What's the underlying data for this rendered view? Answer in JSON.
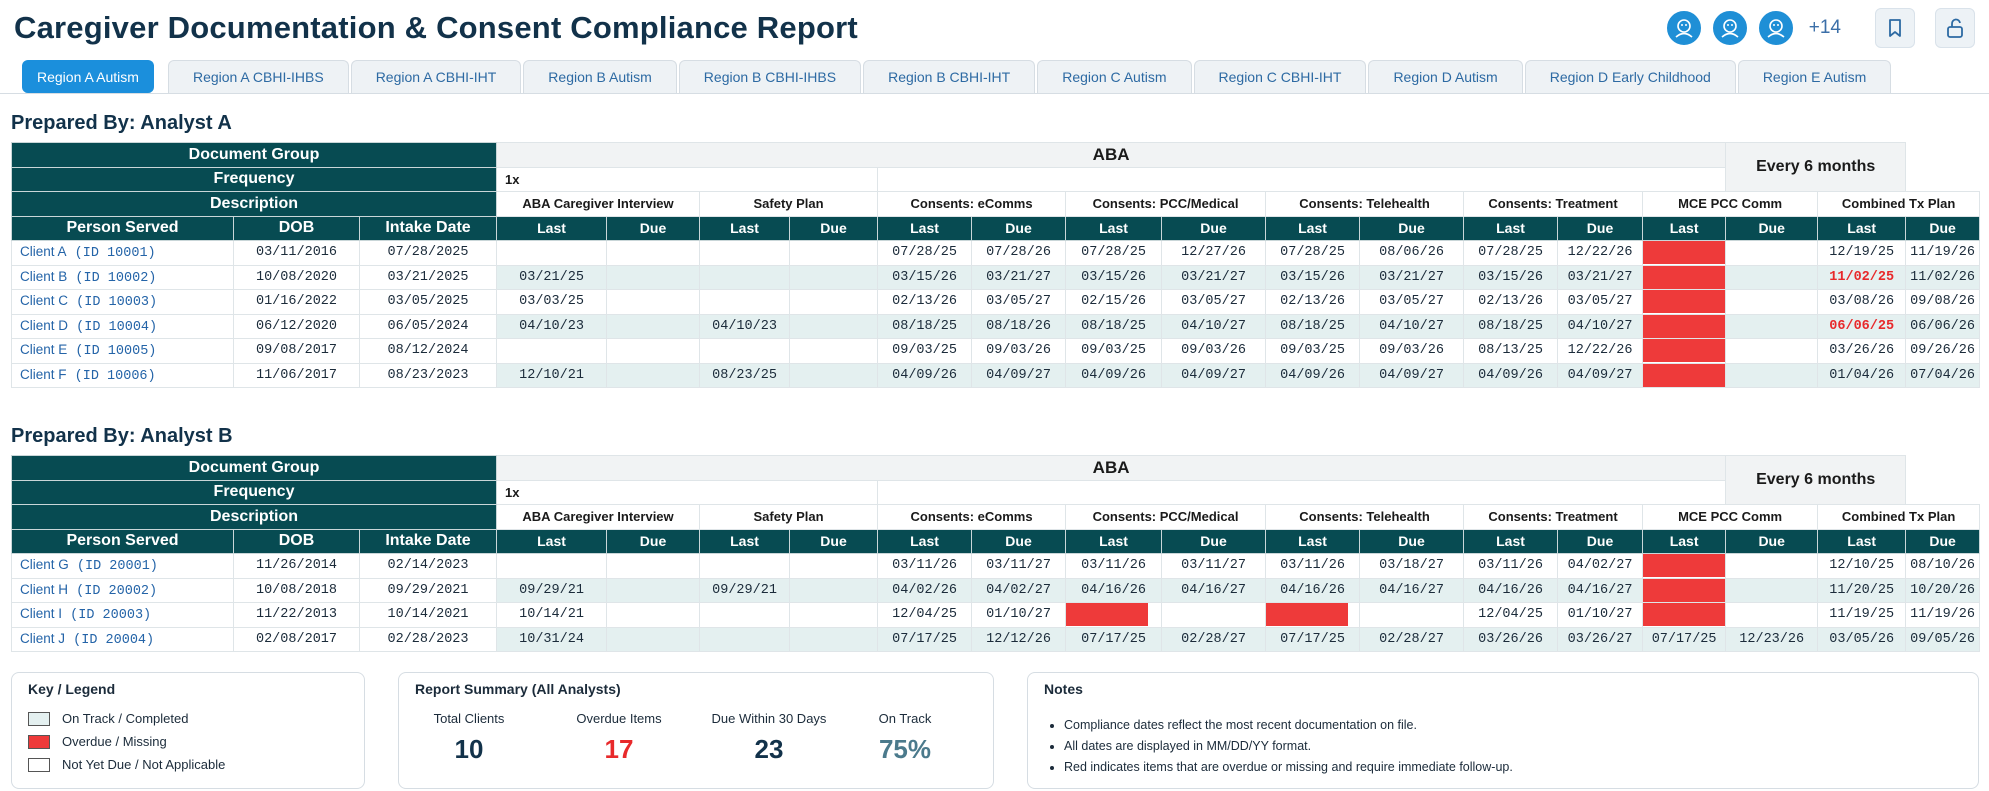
{
  "title": "Caregiver Documentation & Consent Compliance Report",
  "header": {
    "more_count": "+14",
    "avatars": [
      "user-avatar-1",
      "user-avatar-2",
      "user-avatar-3"
    ],
    "bookmark_icon": "bookmark-icon",
    "unlock_icon": "unlock-icon"
  },
  "tabs": [
    "Region A Autism",
    "Region A CBHI-IHBS",
    "Region A CBHI-IHT",
    "Region B Autism",
    "Region B CBHI-IHBS",
    "Region B CBHI-IHT",
    "Region C Autism",
    "Region C CBHI-IHT",
    "Region D Autism",
    "Region D Early Childhood",
    "Region E Autism"
  ],
  "active_tab": "Region A Autism",
  "table_headers": {
    "document_group": "Document Group",
    "frequency": "Frequency",
    "description": "Description",
    "person_served": "Person Served",
    "dob": "DOB",
    "intake_date": "Intake Date",
    "group_name": "ABA",
    "frequency_value": "1x",
    "every_6_months": "Every 6 months",
    "last": "Last",
    "due": "Due",
    "descriptions": [
      "ABA Caregiver Interview",
      "Safety Plan",
      "Consents: eComms",
      "Consents: PCC/Medical",
      "Consents: Telehealth",
      "Consents: Treatment",
      "MCE PCC Comm",
      "Combined Tx Plan"
    ]
  },
  "sections": [
    {
      "prepared_by": "Prepared By: Analyst A",
      "rows": [
        {
          "client": "Client A",
          "id": "(ID 10001)",
          "dob": "03/11/2016",
          "intake": "07/28/2025",
          "cells": [
            "",
            "",
            "",
            "",
            "07/28/25",
            "07/28/26",
            "07/28/25",
            "12/27/26",
            "07/28/25",
            "08/06/26",
            "07/28/25",
            "12/22/26",
            "RED",
            "",
            "12/19/25",
            "11/19/26"
          ]
        },
        {
          "client": "Client B",
          "id": "(ID 10002)",
          "dob": "10/08/2020",
          "intake": "03/21/2025",
          "cells": [
            "03/21/25",
            "",
            "",
            "",
            "03/15/26",
            "03/21/27",
            "03/15/26",
            "03/21/27",
            "03/15/26",
            "03/21/27",
            "03/15/26",
            "03/21/27",
            "RED",
            "",
            "11/02/25",
            "11/02/26"
          ]
        },
        {
          "client": "Client C",
          "id": "(ID 10003)",
          "dob": "01/16/2022",
          "intake": "03/05/2025",
          "cells": [
            "03/03/25",
            "",
            "",
            "",
            "02/13/26",
            "03/05/27",
            "02/15/26",
            "03/05/27",
            "02/13/26",
            "03/05/27",
            "02/13/26",
            "03/05/27",
            "RED",
            "",
            "03/08/26",
            "09/08/26"
          ]
        },
        {
          "client": "Client D",
          "id": "(ID 10004)",
          "dob": "06/12/2020",
          "intake": "06/05/2024",
          "cells": [
            "04/10/23",
            "",
            "04/10/23",
            "",
            "08/18/25",
            "08/18/26",
            "08/18/25",
            "04/10/27",
            "08/18/25",
            "04/10/27",
            "08/18/25",
            "04/10/27",
            "RED",
            "",
            "06/06/25",
            "06/06/26"
          ]
        },
        {
          "client": "Client E",
          "id": "(ID 10005)",
          "dob": "09/08/2017",
          "intake": "08/12/2024",
          "cells": [
            "",
            "",
            "",
            "",
            "09/03/25",
            "09/03/26",
            "09/03/25",
            "09/03/26",
            "09/03/25",
            "09/03/26",
            "08/13/25",
            "12/22/26",
            "RED",
            "",
            "03/26/26",
            "09/26/26"
          ]
        },
        {
          "client": "Client F",
          "id": "(ID 10006)",
          "dob": "11/06/2017",
          "intake": "08/23/2023",
          "cells": [
            "12/10/21",
            "",
            "08/23/25",
            "",
            "04/09/26",
            "04/09/27",
            "04/09/26",
            "04/09/27",
            "04/09/26",
            "04/09/27",
            "04/09/26",
            "04/09/27",
            "RED",
            "",
            "01/04/26",
            "07/04/26"
          ]
        }
      ]
    },
    {
      "prepared_by": "Prepared By: Analyst B",
      "rows": [
        {
          "client": "Client G",
          "id": "(ID 20001)",
          "dob": "11/26/2014",
          "intake": "02/14/2023",
          "cells": [
            "",
            "",
            "",
            "",
            "03/11/26",
            "03/11/27",
            "03/11/26",
            "03/11/27",
            "03/11/26",
            "03/18/27",
            "03/11/26",
            "04/02/27",
            "RED",
            "",
            "12/10/25",
            "08/10/26"
          ]
        },
        {
          "client": "Client H",
          "id": "(ID 20002)",
          "dob": "10/08/2018",
          "intake": "09/29/2021",
          "cells": [
            "09/29/21",
            "",
            "09/29/21",
            "",
            "04/02/26",
            "04/02/27",
            "04/16/26",
            "04/16/27",
            "04/16/26",
            "04/16/27",
            "04/16/26",
            "04/16/27",
            "RED",
            "",
            "11/20/25",
            "10/20/26"
          ]
        },
        {
          "client": "Client I",
          "id": "(ID 20003)",
          "dob": "11/22/2013",
          "intake": "10/14/2021",
          "cells": [
            "10/14/21",
            "",
            "",
            "",
            "12/04/25",
            "01/10/27",
            "RED",
            "",
            "RED",
            "",
            "12/04/25",
            "01/10/27",
            "RED",
            "",
            "11/19/25",
            "11/19/26"
          ]
        },
        {
          "client": "Client J",
          "id": "(ID 20004)",
          "dob": "02/08/2017",
          "intake": "02/28/2023",
          "cells": [
            "10/31/24",
            "",
            "",
            "",
            "07/17/25",
            "12/12/26",
            "07/17/25",
            "02/28/27",
            "07/17/25",
            "02/28/27",
            "03/26/26",
            "03/26/27",
            "07/17/25",
            "12/23/26",
            "03/05/26",
            "09/05/26"
          ]
        }
      ]
    }
  ],
  "late_dates": [
    "11/02/25",
    "06/06/25"
  ],
  "legend": {
    "title": "Key / Legend",
    "items": [
      {
        "label": "On Track / Completed",
        "color": "#e4f0f0"
      },
      {
        "label": "Overdue / Missing",
        "color": "#ee3a3a"
      },
      {
        "label": "Not Yet Due / Not Applicable",
        "color": "#ffffff"
      }
    ]
  },
  "summary": {
    "title": "Report Summary (All Analysts)",
    "stats": [
      {
        "label": "Total Clients",
        "value": "10",
        "color": "#12324a"
      },
      {
        "label": "Overdue Items",
        "value": "17",
        "color": "#e8292b"
      },
      {
        "label": "Due Within 30 Days",
        "value": "23",
        "color": "#12324a"
      },
      {
        "label": "On Track",
        "value": "75%",
        "color": "#4b7a8c"
      }
    ]
  },
  "notes": {
    "title": "Notes",
    "items": [
      "Compliance dates reflect the most recent documentation on file.",
      "All dates are displayed in MM/DD/YY format.",
      "Red indicates items that are overdue or missing and require immediate follow-up."
    ]
  }
}
